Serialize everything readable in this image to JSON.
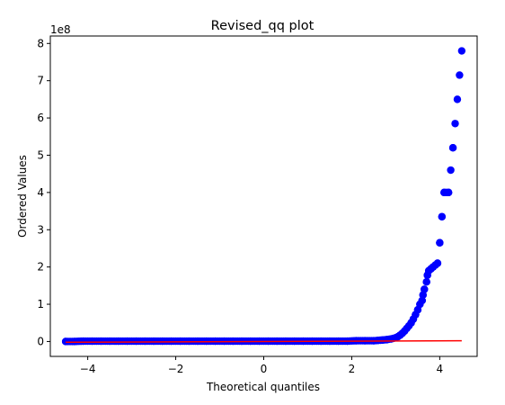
{
  "chart_data": {
    "type": "scatter",
    "title": "Revised_qq plot",
    "xlabel": "Theoretical quantiles",
    "ylabel": "Ordered Values",
    "y_offset_label": "1e8",
    "xlim": [
      -4.85,
      4.85
    ],
    "ylim": [
      -0.4,
      8.2
    ],
    "x_ticks": [
      -4,
      -2,
      0,
      2,
      4
    ],
    "x_tick_labels": [
      "−4",
      "−2",
      "0",
      "2",
      "4"
    ],
    "y_ticks": [
      0,
      1,
      2,
      3,
      4,
      5,
      6,
      7,
      8
    ],
    "y_tick_labels": [
      "0",
      "1",
      "2",
      "3",
      "4",
      "5",
      "6",
      "7",
      "8"
    ],
    "grid": false,
    "series": [
      {
        "kind": "points",
        "color": "#0000ff",
        "x": [
          -4.5,
          -4.3,
          -4.1,
          -3.9,
          -3.7,
          -3.5,
          -3.3,
          -3.1,
          -2.9,
          -2.7,
          -2.5,
          -2.3,
          -2.1,
          -1.9,
          -1.7,
          -1.5,
          -1.3,
          -1.1,
          -0.9,
          -0.7,
          -0.5,
          -0.3,
          -0.1,
          0.1,
          0.3,
          0.5,
          0.7,
          0.9,
          1.1,
          1.3,
          1.5,
          1.7,
          1.9,
          2.1,
          2.3,
          2.5,
          2.6,
          2.7,
          2.8,
          2.9,
          3.0,
          3.05,
          3.1,
          3.15,
          3.2,
          3.25,
          3.3,
          3.35,
          3.4,
          3.45,
          3.5,
          3.55,
          3.6,
          3.62,
          3.65,
          3.7,
          3.72,
          3.75,
          3.8,
          3.85,
          3.9,
          3.95,
          4.0,
          4.05,
          4.1,
          4.2,
          4.3,
          4.5
        ],
        "y": [
          0.0,
          0.0,
          0.01,
          0.01,
          0.01,
          0.01,
          0.01,
          0.01,
          0.01,
          0.01,
          0.01,
          0.01,
          0.01,
          0.01,
          0.01,
          0.01,
          0.01,
          0.01,
          0.01,
          0.01,
          0.01,
          0.01,
          0.01,
          0.01,
          0.01,
          0.01,
          0.01,
          0.01,
          0.01,
          0.01,
          0.01,
          0.01,
          0.01,
          0.02,
          0.02,
          0.02,
          0.03,
          0.04,
          0.05,
          0.07,
          0.1,
          0.13,
          0.17,
          0.22,
          0.28,
          0.35,
          0.42,
          0.5,
          0.6,
          0.72,
          0.85,
          1.0,
          1.1,
          1.25,
          1.4,
          1.6,
          1.78,
          1.9,
          1.95,
          2.0,
          2.05,
          2.1,
          2.65,
          3.35,
          4.0,
          4.0,
          5.2,
          7.8
        ]
      },
      {
        "kind": "fit-line",
        "color": "#ff0000",
        "x": [
          -4.5,
          4.5
        ],
        "y": [
          -0.02,
          0.02
        ]
      }
    ]
  }
}
